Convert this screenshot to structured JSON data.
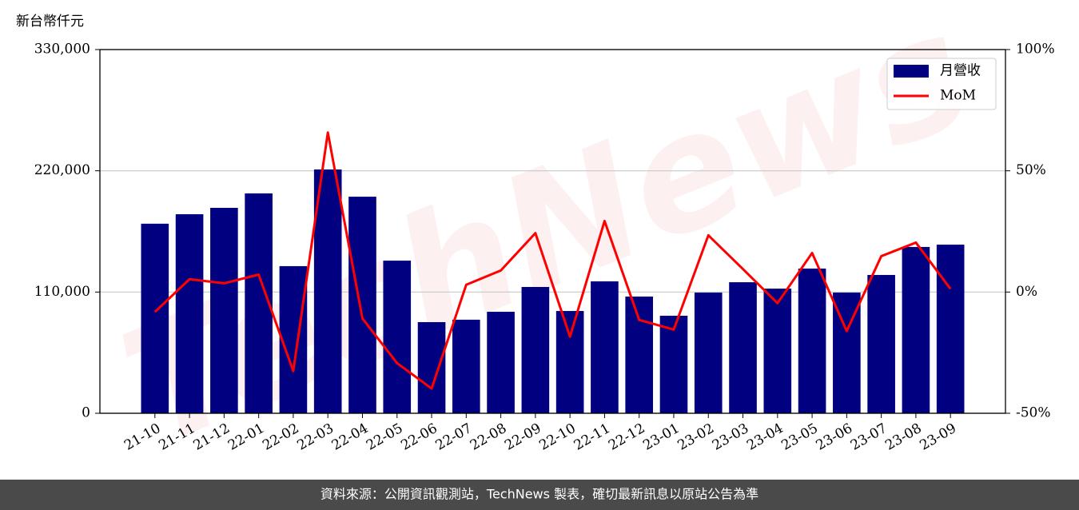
{
  "chart_data": {
    "type": "bar",
    "y_axis_label": "新台幣仟元",
    "watermark": "TechNews",
    "footer": "資料來源：公開資訊觀測站，TechNews 製表，確切最新訊息以原站公告為準",
    "categories": [
      "21-10",
      "21-11",
      "21-12",
      "22-01",
      "22-02",
      "22-03",
      "22-04",
      "22-05",
      "22-06",
      "22-07",
      "22-08",
      "22-09",
      "22-10",
      "22-11",
      "22-12",
      "23-01",
      "23-02",
      "23-03",
      "23-04",
      "23-05",
      "23-06",
      "23-07",
      "23-08",
      "23-09"
    ],
    "series": [
      {
        "name": "月營收",
        "type": "bar",
        "color": "#000080",
        "axis": "y",
        "values": [
          172000,
          180600,
          186400,
          199500,
          133500,
          221200,
          196500,
          138500,
          82700,
          84900,
          92100,
          114600,
          92800,
          119700,
          105900,
          88500,
          109500,
          118900,
          113100,
          131300,
          109500,
          125500,
          150900,
          153000
        ]
      },
      {
        "name": "MoM",
        "type": "line",
        "color": "#ff0000",
        "axis": "y2",
        "values": [
          -8.2,
          5.3,
          3.6,
          7.2,
          -32.6,
          65.8,
          -10.9,
          -29.3,
          -39.8,
          3.0,
          8.9,
          24.3,
          -18.4,
          29.3,
          -11.5,
          -15.5,
          23.4,
          9.5,
          -4.6,
          16.1,
          -16.1,
          14.8,
          20.4,
          1.3
        ]
      }
    ],
    "ylim": [
      0,
      330000
    ],
    "yticks": [
      0,
      {
        "value": 110000,
        "label": "110,000"
      },
      {
        "value": 220000,
        "label": "220,000"
      },
      {
        "value": 330000,
        "label": "330,000"
      }
    ],
    "y2lim": [
      -50,
      100
    ],
    "y2ticks": [
      {
        "value": -50,
        "label": "-50%"
      },
      {
        "value": 0,
        "label": "0%"
      },
      {
        "value": 50,
        "label": "50%"
      },
      {
        "value": 100,
        "label": "100%"
      }
    ],
    "grid": true,
    "legend": "upper right"
  }
}
